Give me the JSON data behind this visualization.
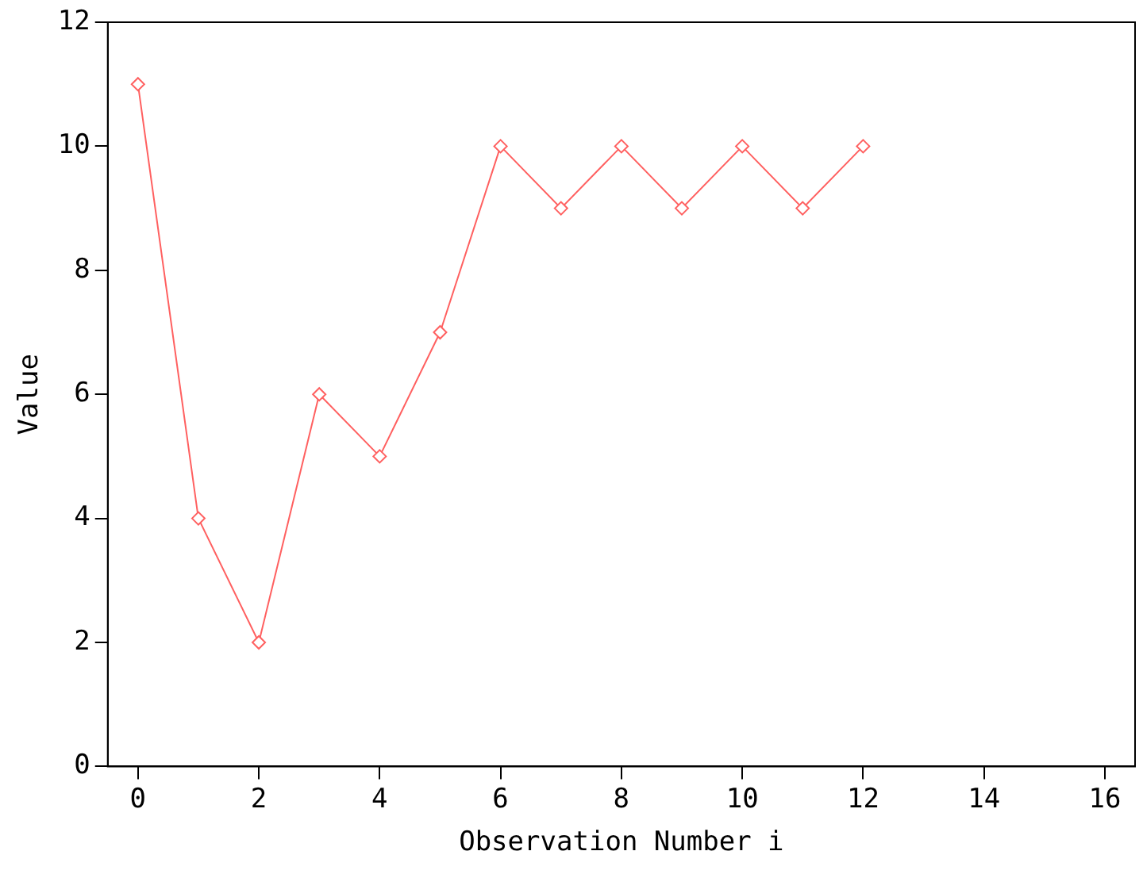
{
  "chart_data": {
    "type": "line",
    "xlabel": "Observation Number i",
    "ylabel": "Value",
    "x": [
      0,
      1,
      2,
      3,
      4,
      5,
      6,
      7,
      8,
      9,
      10,
      11,
      12
    ],
    "series": [
      {
        "color": "#ff6060",
        "values": [
          11,
          4,
          2,
          6,
          5,
          7,
          10,
          9,
          10,
          9,
          10,
          9,
          10
        ]
      }
    ],
    "xlim": [
      -0.5,
      16.5
    ],
    "xticks": [
      0,
      2,
      4,
      6,
      8,
      10,
      12,
      14,
      16
    ],
    "ylim": [
      0,
      12
    ],
    "yticks": [
      0,
      2,
      4,
      6,
      8,
      10,
      12
    ],
    "grid": false,
    "legend": false,
    "marker": "diamond",
    "line_style": "solid"
  }
}
